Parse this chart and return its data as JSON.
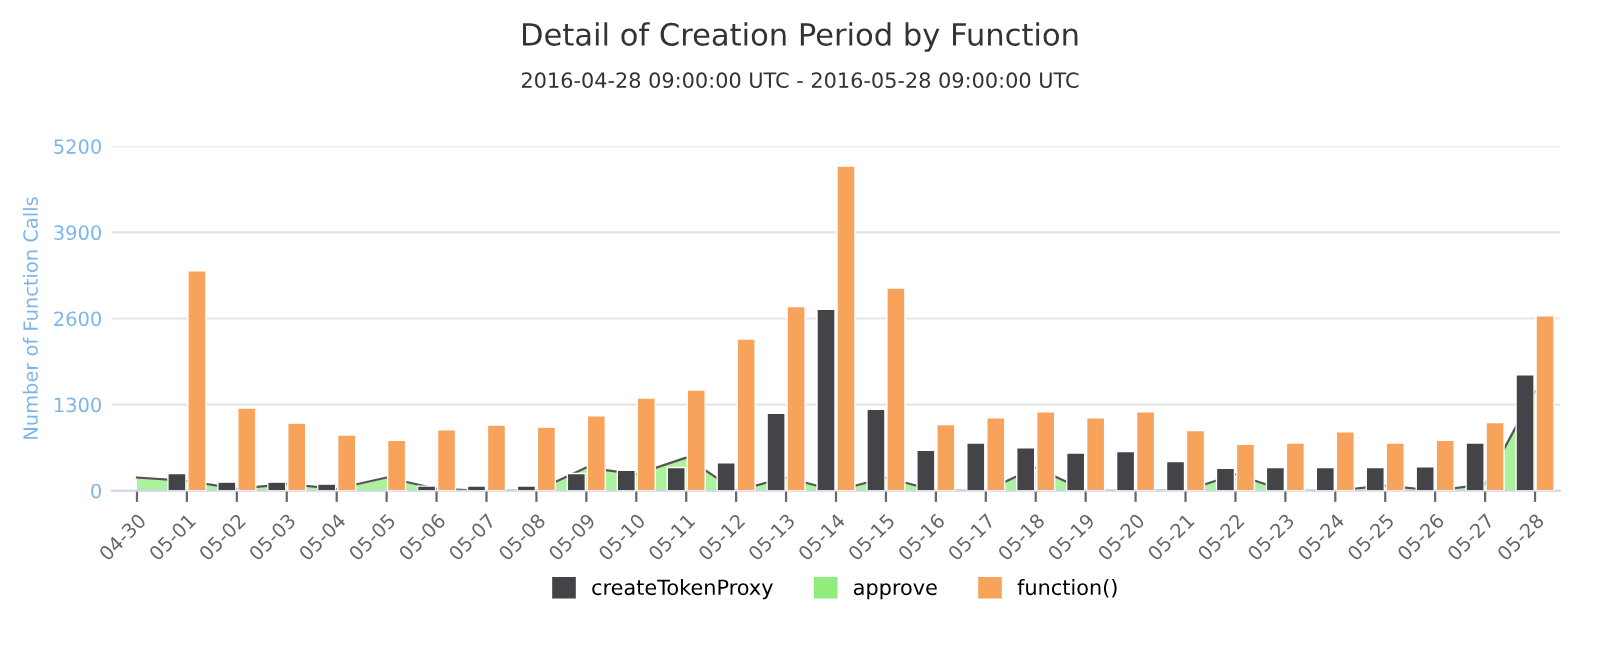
{
  "chart_data": {
    "type": "bar",
    "title": "Detail of Creation Period by Function",
    "subtitle": "2016-04-28 09:00:00 UTC - 2016-05-28 09:00:00 UTC",
    "ylabel": "Number of Function Calls",
    "categories": [
      "04-30",
      "05-01",
      "05-02",
      "05-03",
      "05-04",
      "05-05",
      "05-06",
      "05-07",
      "05-08",
      "05-09",
      "05-10",
      "05-11",
      "05-12",
      "05-13",
      "05-14",
      "05-15",
      "05-16",
      "05-17",
      "05-18",
      "05-19",
      "05-20",
      "05-21",
      "05-22",
      "05-23",
      "05-24",
      "05-25",
      "05-26",
      "05-27",
      "05-28"
    ],
    "series": [
      {
        "name": "createTokenProxy",
        "color": "#434348",
        "values": [
          null,
          260,
          130,
          130,
          100,
          null,
          70,
          70,
          70,
          260,
          310,
          350,
          420,
          1170,
          2740,
          1230,
          610,
          720,
          650,
          570,
          590,
          440,
          340,
          350,
          350,
          350,
          360,
          720,
          1750
        ]
      },
      {
        "name": "approve",
        "color": "#90ed7d",
        "type": "area",
        "values": [
          200,
          150,
          30,
          100,
          30,
          200,
          30,
          0,
          0,
          350,
          250,
          500,
          0,
          200,
          0,
          200,
          0,
          0,
          350,
          0,
          0,
          0,
          250,
          0,
          0,
          80,
          0,
          100,
          1500
        ]
      },
      {
        "name": "function()",
        "color": "#f7a35c",
        "values": [
          null,
          3320,
          1250,
          1020,
          840,
          760,
          920,
          990,
          960,
          1130,
          1400,
          1520,
          2290,
          2780,
          4900,
          3060,
          1000,
          1100,
          1190,
          1100,
          1190,
          910,
          700,
          720,
          890,
          720,
          760,
          1030,
          2640
        ]
      }
    ],
    "ylim": [
      0,
      5200
    ],
    "yticks": [
      0,
      1300,
      2600,
      3900,
      5200
    ],
    "grid": "y",
    "legend": "bottom"
  }
}
